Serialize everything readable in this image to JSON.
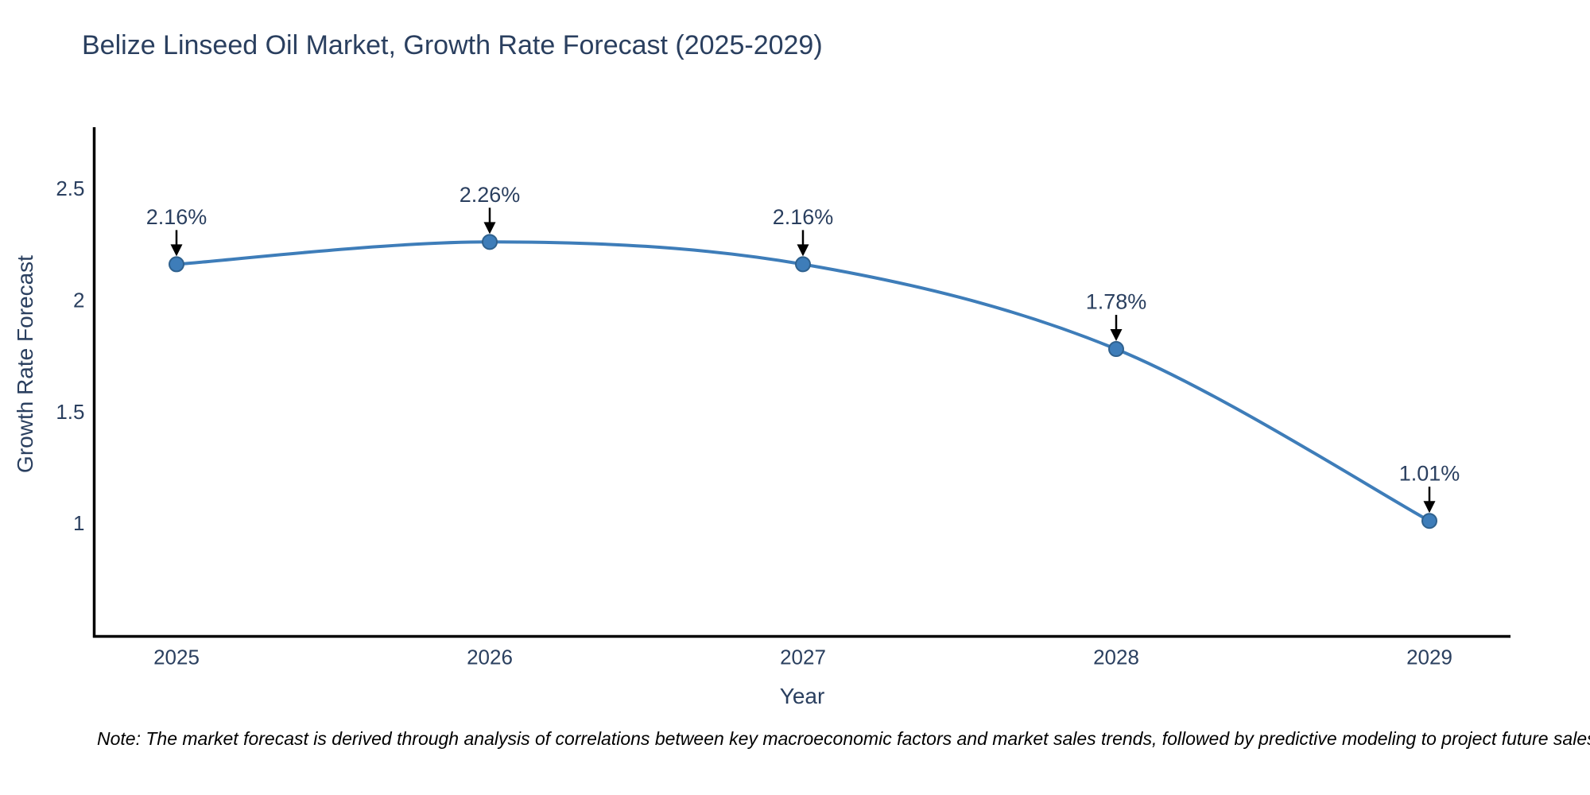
{
  "title": "Belize Linseed Oil Market, Growth Rate Forecast (2025-2029)",
  "note": "Note: The market forecast is derived through analysis of correlations between key macroeconomic factors and market sales trends, followed by predictive modeling to project future sales.",
  "chart_data": {
    "type": "line",
    "title": "Belize Linseed Oil Market, Growth Rate Forecast (2025-2029)",
    "xlabel": "Year",
    "ylabel": "Growth Rate Forecast",
    "x": [
      2025,
      2026,
      2027,
      2028,
      2029
    ],
    "y": [
      2.16,
      2.26,
      2.16,
      1.78,
      1.01
    ],
    "point_labels": [
      "2.16%",
      "2.26%",
      "2.16%",
      "1.78%",
      "1.01%"
    ],
    "xtick_labels": [
      "2025",
      "2026",
      "2027",
      "2028",
      "2029"
    ],
    "ytick_values": [
      2.5,
      2,
      1.5,
      1
    ],
    "ytick_labels": [
      "2.5",
      "2",
      "1.5",
      "1"
    ],
    "ylim": [
      0.49,
      2.77
    ],
    "grid": false,
    "legend": false,
    "line_shape": "spline",
    "colors": {
      "line": "#3e7db9",
      "marker_fill": "#3e7db9",
      "marker_edge": "#2f618e",
      "axis_line": "#000000",
      "text": "#2a3f5f",
      "annotation_arrow": "#000000"
    }
  }
}
